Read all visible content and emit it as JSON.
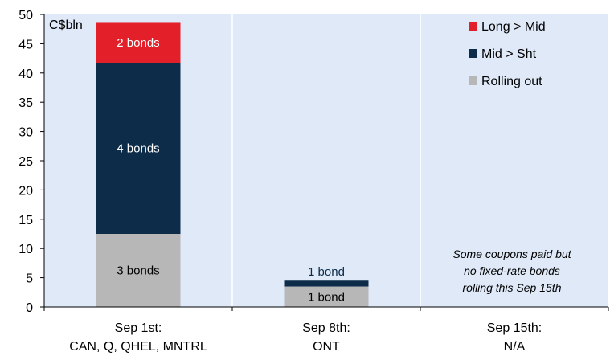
{
  "chart_data": {
    "type": "bar",
    "stacked": true,
    "unit_label": "C$bln",
    "ylim": [
      0,
      50
    ],
    "yticks": [
      0,
      5,
      10,
      15,
      20,
      25,
      30,
      35,
      40,
      45,
      50
    ],
    "grid": "vertical lines between categories",
    "legend_position": "top-right",
    "categories": [
      [
        "Sep 1st:",
        "CAN, Q, QHEL, MNTRL"
      ],
      [
        "Sep 8th:",
        "ONT"
      ],
      [
        "Sep 15th:",
        "N/A"
      ]
    ],
    "series": [
      {
        "name": "Rolling out",
        "color": "#b7b7b7",
        "values": [
          12.5,
          3.5,
          0
        ],
        "labels": [
          "3 bonds",
          "1 bond",
          ""
        ]
      },
      {
        "name": "Mid > Sht",
        "color": "#0c2c4a",
        "values": [
          29.2,
          1.0,
          0
        ],
        "labels": [
          "4 bonds",
          "1 bond",
          ""
        ]
      },
      {
        "name": "Long > Mid",
        "color": "#e3202a",
        "values": [
          7.0,
          0,
          0
        ],
        "labels": [
          "2 bonds",
          "",
          ""
        ]
      }
    ],
    "legend_order": [
      "Long > Mid",
      "Mid > Sht",
      "Rolling out"
    ],
    "annotation": [
      "Some coupons paid but",
      "no fixed-rate bonds",
      "rolling this Sep 15th"
    ]
  },
  "colors": {
    "plot_background": "#dfe9f8",
    "gridline": "#ffffff",
    "axis": "#000000"
  }
}
